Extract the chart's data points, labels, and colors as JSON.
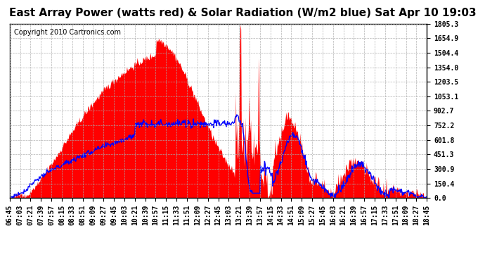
{
  "title": "East Array Power (watts red) & Solar Radiation (W/m2 blue) Sat Apr 10 19:03",
  "copyright": "Copyright 2010 Cartronics.com",
  "background_color": "#ffffff",
  "plot_bg_color": "#ffffff",
  "y_ticks": [
    0.0,
    150.4,
    300.9,
    451.3,
    601.8,
    752.2,
    902.7,
    1053.1,
    1203.5,
    1354.0,
    1504.4,
    1654.9,
    1805.3
  ],
  "ymax": 1805.3,
  "red_color": "#ff0000",
  "blue_color": "#0000ff",
  "grid_color": "#aaaaaa",
  "title_fontsize": 11,
  "copyright_fontsize": 7,
  "tick_fontsize": 7
}
